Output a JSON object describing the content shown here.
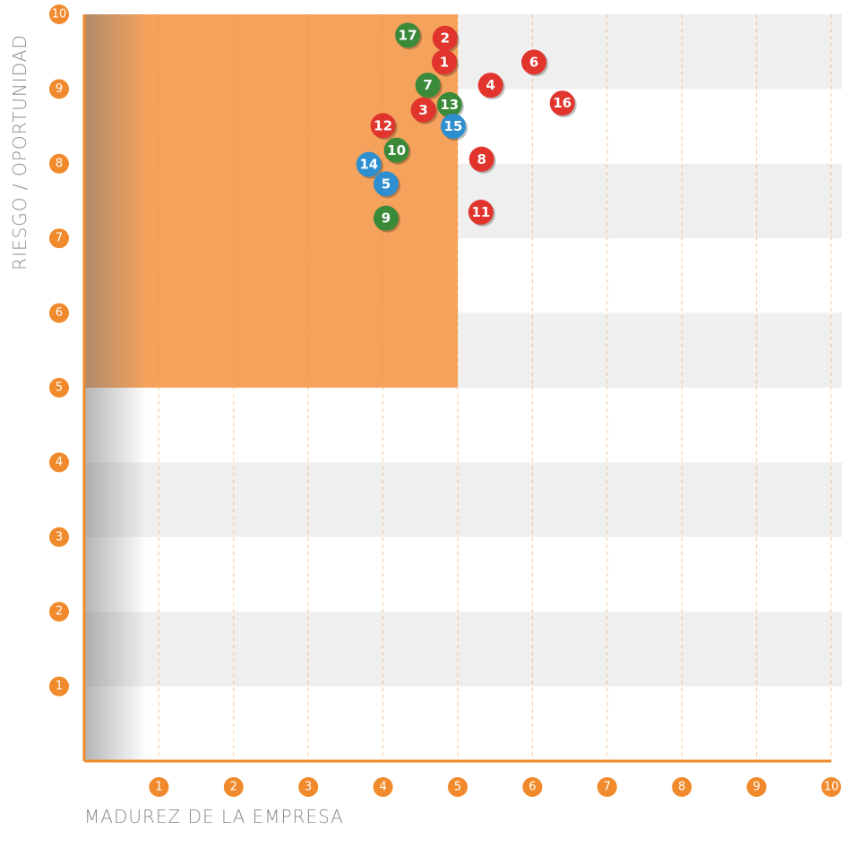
{
  "chart_data": {
    "type": "scatter",
    "x_label": "MADUREZ DE LA EMPRESA",
    "y_label": "RIESGO / OPORTUNIDAD",
    "xlim": [
      0,
      10
    ],
    "ylim": [
      0,
      10
    ],
    "xticks": [
      1,
      2,
      3,
      4,
      5,
      6,
      7,
      8,
      9,
      10
    ],
    "yticks": [
      1,
      2,
      3,
      4,
      5,
      6,
      7,
      8,
      9,
      10
    ],
    "grid": true,
    "axis_color": "#f08a2c",
    "highlight": {
      "xlim": [
        0,
        5
      ],
      "ylim": [
        5,
        10
      ],
      "color": "#f5a25c"
    },
    "points": [
      {
        "label": "17",
        "x": 4.33,
        "y": 9.72,
        "color": "#3a8a3a"
      },
      {
        "label": "2",
        "x": 4.83,
        "y": 9.68,
        "color": "#e0342c"
      },
      {
        "label": "1",
        "x": 4.82,
        "y": 9.36,
        "color": "#e0342c"
      },
      {
        "label": "6",
        "x": 6.02,
        "y": 9.36,
        "color": "#e0342c"
      },
      {
        "label": "7",
        "x": 4.6,
        "y": 9.05,
        "color": "#3a8a3a"
      },
      {
        "label": "4",
        "x": 5.44,
        "y": 9.05,
        "color": "#e0342c"
      },
      {
        "label": "16",
        "x": 6.4,
        "y": 8.81,
        "color": "#e0342c"
      },
      {
        "label": "3",
        "x": 4.54,
        "y": 8.72,
        "color": "#e0342c"
      },
      {
        "label": "13",
        "x": 4.89,
        "y": 8.79,
        "color": "#3a8a3a"
      },
      {
        "label": "15",
        "x": 4.94,
        "y": 8.5,
        "color": "#2e8fd0"
      },
      {
        "label": "12",
        "x": 4.0,
        "y": 8.51,
        "color": "#e0342c"
      },
      {
        "label": "10",
        "x": 4.18,
        "y": 8.18,
        "color": "#3a8a3a"
      },
      {
        "label": "8",
        "x": 5.32,
        "y": 8.06,
        "color": "#e0342c"
      },
      {
        "label": "14",
        "x": 3.81,
        "y": 7.99,
        "color": "#2e8fd0"
      },
      {
        "label": "5",
        "x": 4.04,
        "y": 7.73,
        "color": "#2e8fd0"
      },
      {
        "label": "11",
        "x": 5.31,
        "y": 7.35,
        "color": "#e0342c"
      },
      {
        "label": "9",
        "x": 4.04,
        "y": 7.27,
        "color": "#3a8a3a"
      }
    ]
  }
}
